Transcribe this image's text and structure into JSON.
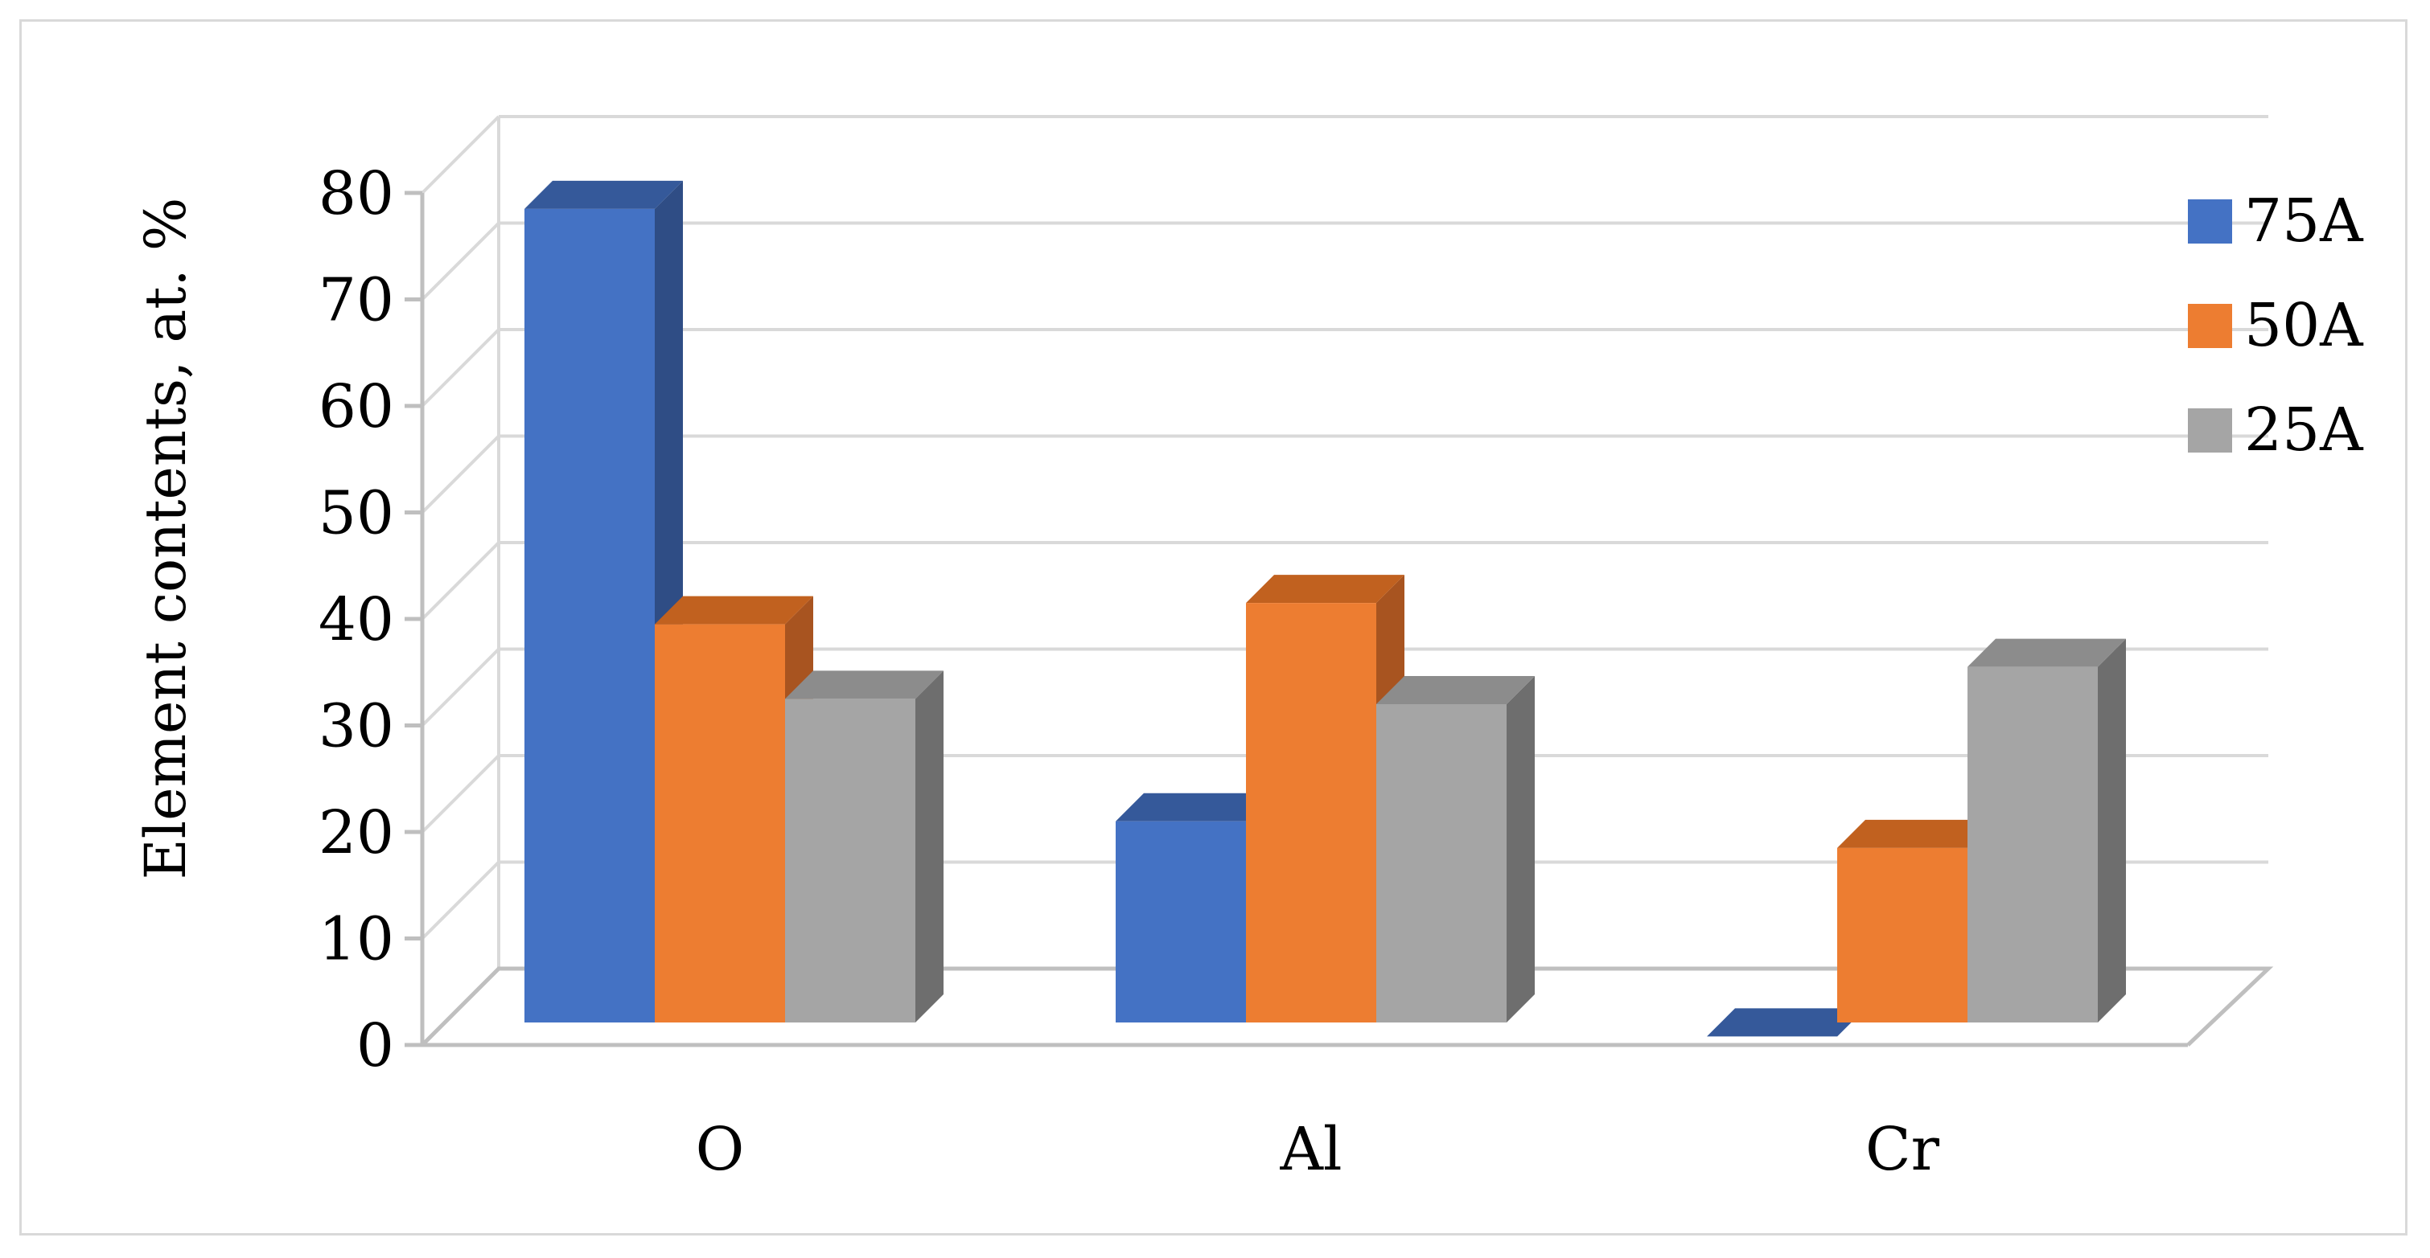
{
  "chart_data": {
    "type": "bar",
    "style": "3d-clustered-column",
    "categories": [
      "O",
      "Al",
      "Cr"
    ],
    "series": [
      {
        "name": "75A",
        "values": [
          78.5,
          21.0,
          0.8
        ],
        "color": "#4472C4",
        "side_color": "#2F4D85",
        "top_color": "#35599A"
      },
      {
        "name": "50A",
        "values": [
          39.5,
          41.5,
          18.5
        ],
        "color": "#ED7D31",
        "side_color": "#A85420",
        "top_color": "#C1611F"
      },
      {
        "name": "25A",
        "values": [
          32.5,
          32.0,
          35.5
        ],
        "color": "#A5A5A5",
        "side_color": "#6E6E6E",
        "top_color": "#8C8C8C"
      }
    ],
    "ylabel": "Element contents, at. %",
    "xlabel": "",
    "ylim": [
      0,
      80
    ],
    "yticks": [
      0,
      10,
      20,
      30,
      40,
      50,
      60,
      70,
      80
    ],
    "grid": true,
    "legend": "right"
  }
}
